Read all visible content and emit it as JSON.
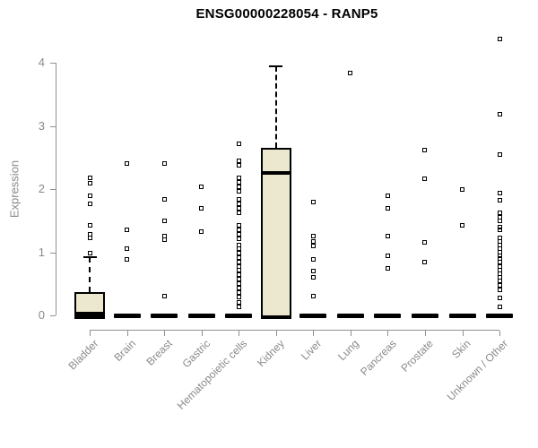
{
  "page": {
    "background": "#ffffff"
  },
  "chart_data": {
    "type": "boxplot",
    "title": "ENSG00000228054 - RANP5",
    "ylabel": "Expression",
    "xlabel": "",
    "ylim": [
      0,
      4.45
    ],
    "yticks": [
      0,
      1,
      2,
      3,
      4
    ],
    "grid": false,
    "legend": false,
    "colors": {
      "box_fill": "#ece7cf",
      "box_border": "#000000",
      "axis": "#909090",
      "tick_label": "#8a8a8a",
      "title": "#000000"
    },
    "categories": [
      "Bladder",
      "Brain",
      "Breast",
      "Gastric",
      "Hematopoietic cells",
      "Kidney",
      "Liver",
      "Lung",
      "Pancreas",
      "Prostate",
      "Skin",
      "Unknown / Other"
    ],
    "series": [
      {
        "category": "Bladder",
        "q1": 0,
        "median": 0.03,
        "q3": 0.37,
        "whisker_low": 0,
        "whisker_high": 0.92,
        "outliers": [
          2.18,
          2.09,
          1.9,
          1.76,
          1.42,
          1.28,
          1.22,
          0.98
        ]
      },
      {
        "category": "Brain",
        "q1": 0,
        "median": 0,
        "q3": 0,
        "whisker_low": 0,
        "whisker_high": 0,
        "outliers": [
          2.4,
          1.35,
          1.06,
          0.89
        ]
      },
      {
        "category": "Breast",
        "q1": 0,
        "median": 0,
        "q3": 0,
        "whisker_low": 0,
        "whisker_high": 0,
        "outliers": [
          2.4,
          1.83,
          1.5,
          1.26,
          1.2,
          0.31
        ]
      },
      {
        "category": "Gastric",
        "q1": 0,
        "median": 0,
        "q3": 0,
        "whisker_low": 0,
        "whisker_high": 0,
        "outliers": [
          2.04,
          1.69,
          1.32
        ]
      },
      {
        "category": "Hematopoietic cells",
        "q1": 0,
        "median": 0,
        "q3": 0,
        "whisker_low": 0,
        "whisker_high": 0,
        "outliers": [
          2.72,
          2.44,
          2.37,
          2.18,
          2.11,
          2.04,
          1.97,
          1.83,
          1.76,
          1.69,
          1.62,
          1.42,
          1.35,
          1.28,
          1.21,
          1.12,
          1.06,
          0.98,
          0.92,
          0.85,
          0.78,
          0.71,
          0.64,
          0.57,
          0.5,
          0.43,
          0.36,
          0.29,
          0.21,
          0.14
        ]
      },
      {
        "category": "Kidney",
        "q1": 0,
        "median": 2.25,
        "q3": 2.65,
        "whisker_low": 0,
        "whisker_high": 3.95,
        "outliers": []
      },
      {
        "category": "Liver",
        "q1": 0,
        "median": 0,
        "q3": 0,
        "whisker_low": 0,
        "whisker_high": 0,
        "outliers": [
          1.8,
          1.26,
          1.17,
          1.1,
          0.88,
          0.7,
          0.6,
          0.31
        ]
      },
      {
        "category": "Lung",
        "q1": 0,
        "median": 0,
        "q3": 0,
        "whisker_low": 0,
        "whisker_high": 0,
        "outliers": [
          3.84
        ]
      },
      {
        "category": "Pancreas",
        "q1": 0,
        "median": 0,
        "q3": 0,
        "whisker_low": 0,
        "whisker_high": 0,
        "outliers": [
          1.9,
          1.69,
          1.26,
          0.95,
          0.74
        ]
      },
      {
        "category": "Prostate",
        "q1": 0,
        "median": 0,
        "q3": 0,
        "whisker_low": 0,
        "whisker_high": 0,
        "outliers": [
          2.62,
          2.16,
          1.16,
          0.84
        ]
      },
      {
        "category": "Skin",
        "q1": 0,
        "median": 0,
        "q3": 0,
        "whisker_low": 0,
        "whisker_high": 0,
        "outliers": [
          1.99,
          1.42
        ]
      },
      {
        "category": "Unknown / Other",
        "q1": 0,
        "median": 0,
        "q3": 0,
        "whisker_low": 0,
        "whisker_high": 0,
        "outliers": [
          4.38,
          3.19,
          2.54,
          1.94,
          1.82,
          1.62,
          1.56,
          1.5,
          1.4,
          1.35,
          1.23,
          1.17,
          1.12,
          1.06,
          1.0,
          0.95,
          0.9,
          0.84,
          0.78,
          0.72,
          0.66,
          0.6,
          0.54,
          0.48,
          0.41,
          0.27,
          0.14
        ]
      }
    ]
  }
}
